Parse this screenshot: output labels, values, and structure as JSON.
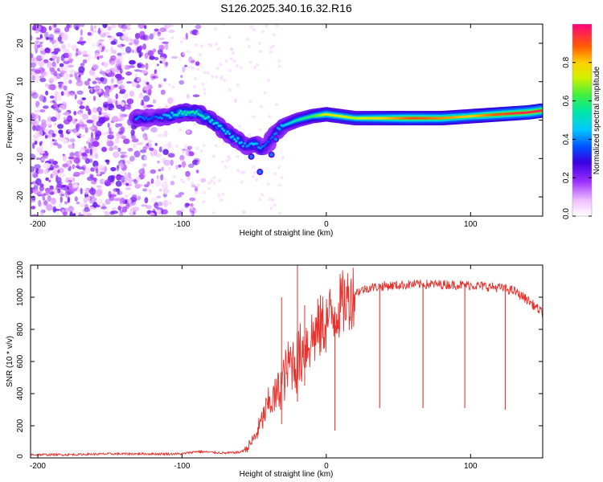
{
  "chart_data": [
    {
      "type": "heatmap",
      "id": "spectrogram",
      "title": "S126.2025.340.16.32.R16",
      "xlabel": "Height of straight line (km)",
      "ylabel": "Frequency (Hz)",
      "xlim": [
        -205,
        150
      ],
      "ylim": [
        -25,
        25
      ],
      "xticks": [
        -200,
        -100,
        0,
        100
      ],
      "yticks": [
        -20,
        -10,
        0,
        10,
        20
      ],
      "colorbar": {
        "label": "Normalized spectral amplitude",
        "range": [
          0,
          1
        ],
        "ticks": [
          0.0,
          0.2,
          0.4,
          0.6,
          0.8
        ]
      },
      "ridge": {
        "x": [
          -132,
          -120,
          -110,
          -100,
          -90,
          -80,
          -70,
          -60,
          -55,
          -50,
          -45,
          -40,
          -35,
          -30,
          -20,
          -10,
          0,
          20,
          40,
          60,
          80,
          100,
          120,
          140,
          150
        ],
        "y": [
          0.5,
          0.5,
          1.0,
          2.0,
          2.0,
          0.0,
          -3.0,
          -5.5,
          -7.0,
          -6.0,
          -7.5,
          -6.0,
          -3.0,
          -1.5,
          0.0,
          1.0,
          1.5,
          0.5,
          0.5,
          0.5,
          0.5,
          1.0,
          1.5,
          2.0,
          2.5
        ],
        "amplitude": [
          0.4,
          0.35,
          0.45,
          0.55,
          0.55,
          0.5,
          0.45,
          0.45,
          0.4,
          0.45,
          0.4,
          0.35,
          0.4,
          0.45,
          0.55,
          0.6,
          0.75,
          0.7,
          0.8,
          0.9,
          0.85,
          0.8,
          0.9,
          0.95,
          0.95
        ]
      },
      "noise_region": [
        -205,
        -110
      ]
    },
    {
      "type": "line",
      "id": "snr",
      "xlabel": "Height of straight line (km)",
      "ylabel": "SNR (10 * v/v)",
      "xlim": [
        -205,
        150
      ],
      "ylim": [
        0,
        1200
      ],
      "xticks": [
        -200,
        -100,
        0,
        100
      ],
      "yticks": [
        0,
        200,
        400,
        600,
        800,
        1000,
        1200
      ],
      "series": [
        {
          "name": "SNR",
          "color": "#e8322d",
          "x": [
            -205,
            -180,
            -150,
            -120,
            -100,
            -90,
            -80,
            -70,
            -60,
            -55,
            -50,
            -45,
            -40,
            -35,
            -30,
            -25,
            -20,
            -15,
            -10,
            -5,
            0,
            10,
            20,
            30,
            40,
            60,
            80,
            100,
            120,
            130,
            140,
            150
          ],
          "values": [
            20,
            20,
            25,
            25,
            25,
            40,
            35,
            30,
            35,
            60,
            120,
            220,
            340,
            380,
            480,
            600,
            600,
            700,
            750,
            800,
            850,
            950,
            1030,
            1060,
            1070,
            1080,
            1080,
            1075,
            1060,
            1040,
            980,
            900
          ]
        }
      ],
      "dropouts": [
        {
          "x": 6,
          "value": 170
        },
        {
          "x": 37,
          "value": 310
        },
        {
          "x": 67,
          "value": 310
        },
        {
          "x": 96,
          "value": 310
        },
        {
          "x": 124,
          "value": 300
        }
      ],
      "spikes": [
        {
          "x": -31,
          "value": 1000
        },
        {
          "x": -20,
          "value": 1200
        },
        {
          "x": -15,
          "value": 950
        }
      ]
    }
  ]
}
